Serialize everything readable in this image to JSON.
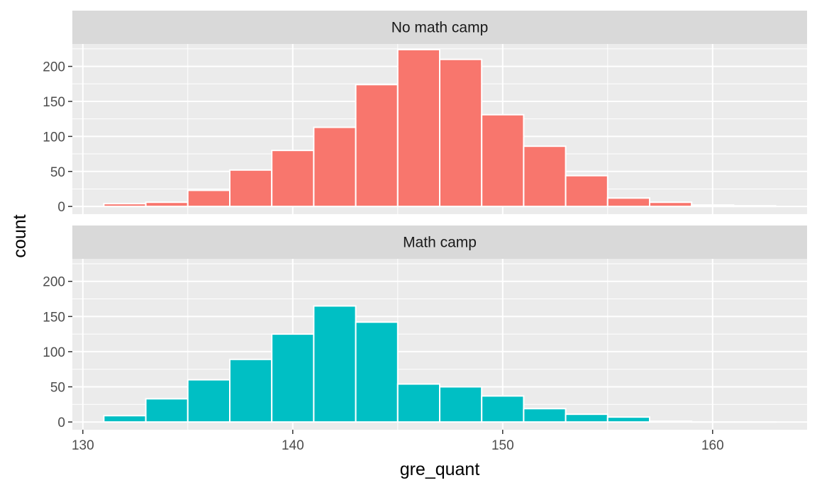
{
  "chart_data": {
    "type": "bar",
    "subtype": "faceted-histogram",
    "xlabel": "gre_quant",
    "ylabel": "count",
    "xlim": [
      129.5,
      164.5
    ],
    "ylim": [
      -11,
      232
    ],
    "x_ticks": [
      130,
      140,
      150,
      160
    ],
    "y_ticks": [
      0,
      50,
      100,
      150,
      200
    ],
    "bin_width": 2,
    "grid": true,
    "legend": "none",
    "panels": [
      {
        "name": "No math camp",
        "color": "#F8766D",
        "bins": [
          {
            "x": 132,
            "count": 4
          },
          {
            "x": 134,
            "count": 6
          },
          {
            "x": 136,
            "count": 23
          },
          {
            "x": 138,
            "count": 52
          },
          {
            "x": 140,
            "count": 80
          },
          {
            "x": 142,
            "count": 113
          },
          {
            "x": 144,
            "count": 174
          },
          {
            "x": 146,
            "count": 224
          },
          {
            "x": 148,
            "count": 210
          },
          {
            "x": 150,
            "count": 131
          },
          {
            "x": 152,
            "count": 86
          },
          {
            "x": 154,
            "count": 44
          },
          {
            "x": 156,
            "count": 12
          },
          {
            "x": 158,
            "count": 6
          },
          {
            "x": 160,
            "count": 2
          },
          {
            "x": 162,
            "count": 1
          }
        ]
      },
      {
        "name": "Math camp",
        "color": "#00BFC4",
        "bins": [
          {
            "x": 132,
            "count": 9
          },
          {
            "x": 134,
            "count": 33
          },
          {
            "x": 136,
            "count": 60
          },
          {
            "x": 138,
            "count": 89
          },
          {
            "x": 140,
            "count": 125
          },
          {
            "x": 142,
            "count": 165
          },
          {
            "x": 144,
            "count": 142
          },
          {
            "x": 146,
            "count": 54
          },
          {
            "x": 148,
            "count": 50
          },
          {
            "x": 150,
            "count": 37
          },
          {
            "x": 152,
            "count": 19
          },
          {
            "x": 154,
            "count": 11
          },
          {
            "x": 156,
            "count": 7
          },
          {
            "x": 158,
            "count": 1
          },
          {
            "x": 160,
            "count": 0
          },
          {
            "x": 162,
            "count": 0
          }
        ]
      }
    ]
  }
}
